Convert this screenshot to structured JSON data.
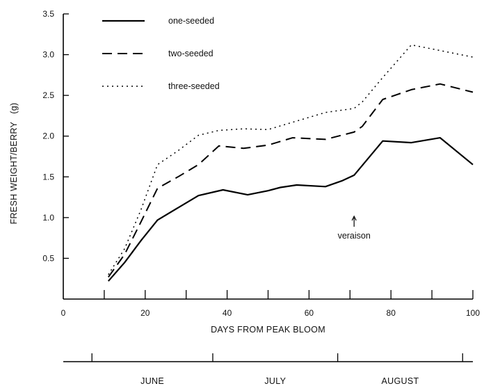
{
  "chart_data": {
    "type": "line",
    "xlabel": "DAYS FROM PEAK BLOOM",
    "ylabel": "FRESH WEIGHT/BERRY   (g)",
    "xlim": [
      0,
      100
    ],
    "ylim": [
      0,
      3.5
    ],
    "xticks": [
      0,
      20,
      40,
      60,
      80,
      100
    ],
    "yticks": [
      0.5,
      1.0,
      1.5,
      2.0,
      2.5,
      3.0,
      3.5
    ],
    "ytick_labels": [
      "0.5",
      "1.0",
      "1.5",
      "2.0",
      "2.5",
      "3.0",
      "3.5"
    ],
    "grid": false,
    "legend_position": "top-left",
    "series": [
      {
        "name": "one-seeded",
        "line_style": "solid",
        "x": [
          11,
          15,
          19,
          23,
          28,
          33,
          39,
          45,
          50,
          53,
          57,
          64,
          68,
          71,
          78,
          85,
          92,
          100
        ],
        "y": [
          0.22,
          0.45,
          0.72,
          0.97,
          1.12,
          1.27,
          1.34,
          1.28,
          1.33,
          1.37,
          1.4,
          1.38,
          1.45,
          1.52,
          1.94,
          1.92,
          1.98,
          1.65
        ]
      },
      {
        "name": "two-seeded",
        "line_style": "dashed",
        "x": [
          11,
          15,
          19,
          23,
          28,
          33,
          38,
          44,
          50,
          56,
          64,
          71,
          73,
          78,
          85,
          92,
          100
        ],
        "y": [
          0.27,
          0.55,
          0.95,
          1.36,
          1.5,
          1.65,
          1.88,
          1.85,
          1.89,
          1.98,
          1.96,
          2.05,
          2.12,
          2.45,
          2.57,
          2.64,
          2.54
        ]
      },
      {
        "name": "three-seeded",
        "line_style": "dotted",
        "x": [
          11,
          15,
          19,
          23,
          28,
          33,
          38,
          44,
          50,
          56,
          64,
          71,
          73,
          78,
          85,
          92,
          100
        ],
        "y": [
          0.3,
          0.62,
          1.1,
          1.65,
          1.82,
          2.01,
          2.07,
          2.09,
          2.08,
          2.17,
          2.29,
          2.34,
          2.42,
          2.72,
          3.12,
          3.05,
          2.97
        ]
      }
    ],
    "annotations": [
      {
        "text": "veraison",
        "x": 71,
        "arrow": "up"
      }
    ],
    "months": {
      "labels": [
        "JUNE",
        "JULY",
        "AUGUST"
      ],
      "boundaries": [
        7,
        36.5,
        67,
        97.5
      ]
    }
  }
}
